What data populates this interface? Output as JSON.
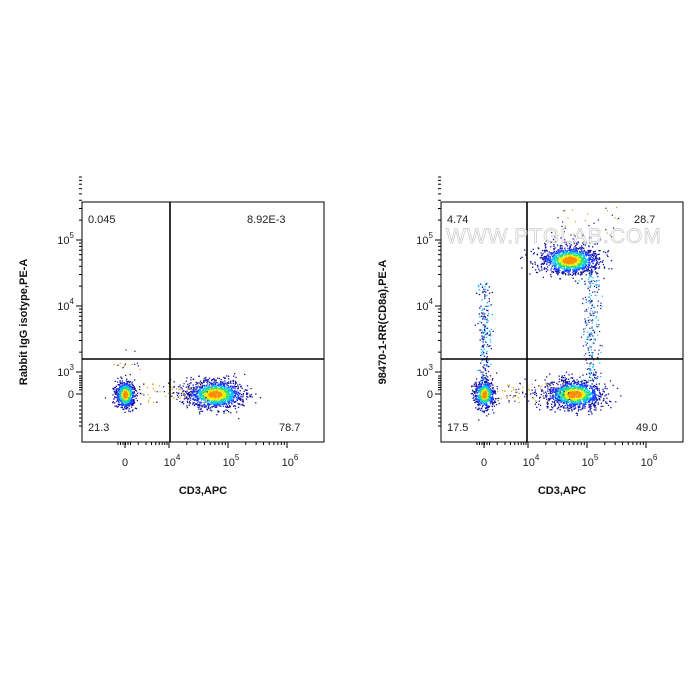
{
  "watermark": "WWW.PTGLAB.COM",
  "chart_data": [
    {
      "type": "scatter",
      "subtype": "flow-cytometry-density-dot-plot",
      "xlabel": "CD3,APC",
      "ylabel": "Rabbit IgG isotype,PE-A",
      "x_scale": "biexponential",
      "y_scale": "biexponential",
      "x_ticks": [
        "0",
        "10^4",
        "10^5",
        "10^6"
      ],
      "y_ticks": [
        "0",
        "10^3",
        "10^4",
        "10^5"
      ],
      "quadrants": {
        "upper_left": "0.045",
        "upper_right": "8.92E-3",
        "lower_left": "21.3",
        "lower_right": "78.7"
      },
      "populations": [
        {
          "name": "CD3-",
          "x": 0,
          "y": 0,
          "density": "high"
        },
        {
          "name": "CD3+",
          "x": 60000,
          "y": 0,
          "density": "high"
        }
      ],
      "color_scale": [
        "#00008b",
        "#0000ff",
        "#00bfff",
        "#00ff7f",
        "#ffff00",
        "#ff8c00",
        "#ff0000"
      ],
      "grid": false
    },
    {
      "type": "scatter",
      "subtype": "flow-cytometry-density-dot-plot",
      "xlabel": "CD3,APC",
      "ylabel": "98470-1-RR(CD8a),PE-A",
      "x_scale": "biexponential",
      "y_scale": "biexponential",
      "x_ticks": [
        "0",
        "10^4",
        "10^5",
        "10^6"
      ],
      "y_ticks": [
        "0",
        "10^3",
        "10^4",
        "10^5"
      ],
      "quadrants": {
        "upper_left": "4.74",
        "upper_right": "28.7",
        "lower_left": "17.5",
        "lower_right": "49.0"
      },
      "populations": [
        {
          "name": "CD3- CD8-",
          "x": 0,
          "y": 0,
          "density": "high"
        },
        {
          "name": "CD3- CD8+",
          "x": 0,
          "y": 5000,
          "density": "low"
        },
        {
          "name": "CD3+ CD8+",
          "x": 50000,
          "y": 50000,
          "density": "high"
        },
        {
          "name": "CD3+ CD8-",
          "x": 60000,
          "y": 0,
          "density": "high"
        }
      ],
      "color_scale": [
        "#00008b",
        "#0000ff",
        "#00bfff",
        "#00ff7f",
        "#ffff00",
        "#ff8c00",
        "#ff0000"
      ],
      "grid": false
    }
  ]
}
